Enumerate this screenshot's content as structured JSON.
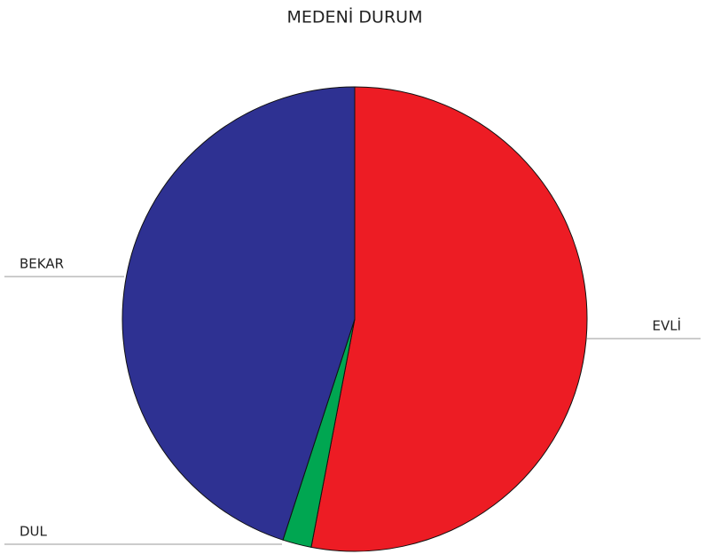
{
  "chart_data": {
    "type": "pie",
    "title": "MEDENİ DURUM",
    "categories": [
      "EVLİ",
      "DUL",
      "BEKAR"
    ],
    "values": [
      53,
      2,
      45
    ],
    "colors": [
      "#ed1c24",
      "#00a651",
      "#2e3192"
    ]
  }
}
